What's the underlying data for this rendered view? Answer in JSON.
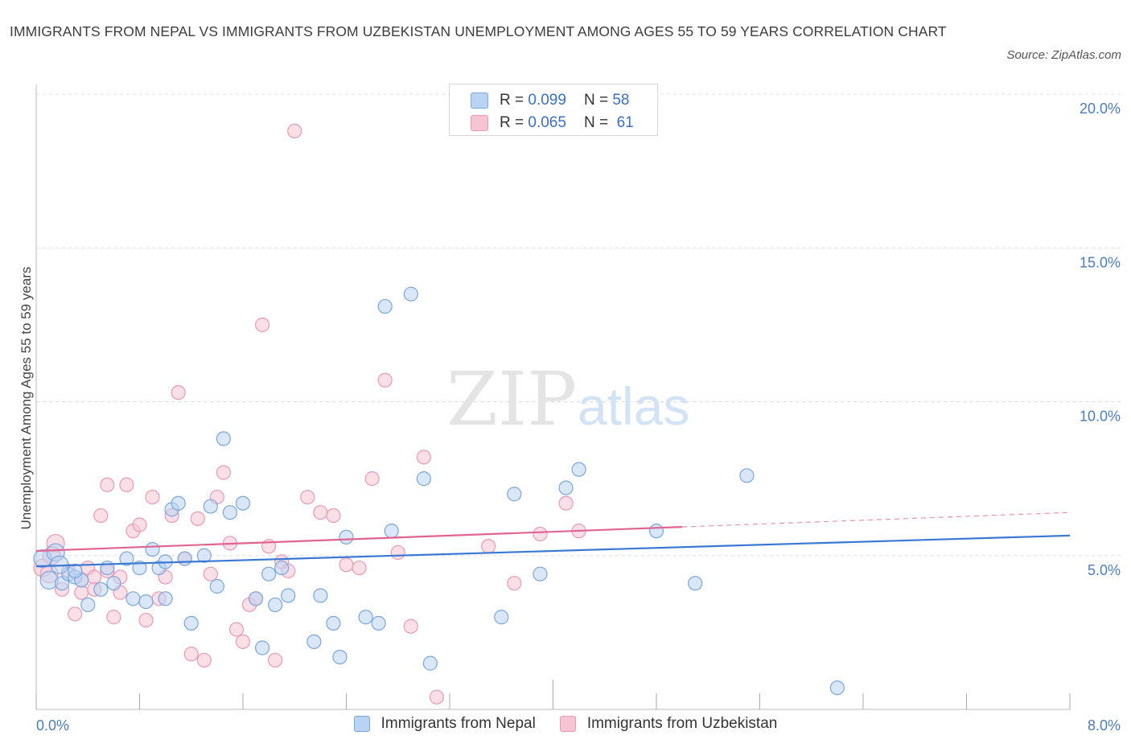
{
  "title": "IMMIGRANTS FROM NEPAL VS IMMIGRANTS FROM UZBEKISTAN UNEMPLOYMENT AMONG AGES 55 TO 59 YEARS CORRELATION CHART",
  "source": "Source: ZipAtlas.com",
  "watermark": {
    "zip": "ZIP",
    "atlas": "atlas"
  },
  "legend": {
    "nepal": {
      "r_label": "R = ",
      "r_value": "0.099",
      "n_label": "N = ",
      "n_value": "58"
    },
    "uzbek": {
      "r_label": "R = ",
      "r_value": "0.065",
      "n_label": "N = ",
      "n_value": "61"
    }
  },
  "bottom_legend": {
    "nepal": "Immigrants from Nepal",
    "uzbek": "Immigrants from Uzbekistan"
  },
  "colors": {
    "nepal_fill": "#b9d3f2",
    "nepal_stroke": "#7aa6e0",
    "nepal_line": "#3a78d4",
    "uzbek_fill": "#f6c4d3",
    "uzbek_stroke": "#ea9ab4",
    "uzbek_line": "#e0648f",
    "grid": "#dcdcdc",
    "tick_text": "#4a7cc7"
  },
  "chart_data": {
    "type": "scatter",
    "xlabel": "",
    "ylabel": "Unemployment Among Ages 55 to 59 years",
    "xlim": [
      0,
      8
    ],
    "ylim": [
      0,
      20
    ],
    "x_tick_labels": [
      "0.0%",
      "8.0%"
    ],
    "y_ticks": [
      5,
      10,
      15,
      20
    ],
    "y_tick_labels": [
      "5.0%",
      "10.0%",
      "15.0%",
      "20.0%"
    ],
    "series": [
      {
        "name": "Immigrants from Nepal",
        "points": [
          [
            0.05,
            4.9
          ],
          [
            0.1,
            4.2
          ],
          [
            0.15,
            5.1
          ],
          [
            0.2,
            4.1
          ],
          [
            0.25,
            4.4
          ],
          [
            0.3,
            4.3
          ],
          [
            0.35,
            4.2
          ],
          [
            0.4,
            3.4
          ],
          [
            0.5,
            3.9
          ],
          [
            0.6,
            4.1
          ],
          [
            0.7,
            4.9
          ],
          [
            0.75,
            3.6
          ],
          [
            0.8,
            4.6
          ],
          [
            0.85,
            3.5
          ],
          [
            0.9,
            5.2
          ],
          [
            0.95,
            4.6
          ],
          [
            1.0,
            4.8
          ],
          [
            1.05,
            6.5
          ],
          [
            1.1,
            6.7
          ],
          [
            1.15,
            4.9
          ],
          [
            1.2,
            2.8
          ],
          [
            1.3,
            5.0
          ],
          [
            1.35,
            6.6
          ],
          [
            1.4,
            4.0
          ],
          [
            1.45,
            8.8
          ],
          [
            1.5,
            6.4
          ],
          [
            1.6,
            6.7
          ],
          [
            1.7,
            3.6
          ],
          [
            1.75,
            2.0
          ],
          [
            1.8,
            4.4
          ],
          [
            1.85,
            3.4
          ],
          [
            1.9,
            4.6
          ],
          [
            1.95,
            3.7
          ],
          [
            2.15,
            2.2
          ],
          [
            2.2,
            3.7
          ],
          [
            2.3,
            2.8
          ],
          [
            2.35,
            1.7
          ],
          [
            2.4,
            5.6
          ],
          [
            2.55,
            3.0
          ],
          [
            2.65,
            2.8
          ],
          [
            2.7,
            13.1
          ],
          [
            2.75,
            5.8
          ],
          [
            2.9,
            13.5
          ],
          [
            3.0,
            7.5
          ],
          [
            3.05,
            1.5
          ],
          [
            3.6,
            3.0
          ],
          [
            3.7,
            7.0
          ],
          [
            3.9,
            4.4
          ],
          [
            4.1,
            7.2
          ],
          [
            4.2,
            7.8
          ],
          [
            4.8,
            5.8
          ],
          [
            5.1,
            4.1
          ],
          [
            5.5,
            7.6
          ],
          [
            6.2,
            0.7
          ],
          [
            0.3,
            4.5
          ],
          [
            0.55,
            4.6
          ],
          [
            1.0,
            3.6
          ],
          [
            0.18,
            4.7
          ]
        ],
        "trend": {
          "x": [
            0,
            8
          ],
          "y": [
            4.65,
            5.65
          ]
        }
      },
      {
        "name": "Immigrants from Uzbekistan",
        "points": [
          [
            0.05,
            4.6
          ],
          [
            0.1,
            4.4
          ],
          [
            0.15,
            5.4
          ],
          [
            0.2,
            3.9
          ],
          [
            0.25,
            4.5
          ],
          [
            0.3,
            3.1
          ],
          [
            0.35,
            3.8
          ],
          [
            0.4,
            4.6
          ],
          [
            0.45,
            4.3
          ],
          [
            0.5,
            6.3
          ],
          [
            0.55,
            7.3
          ],
          [
            0.6,
            3.0
          ],
          [
            0.65,
            4.3
          ],
          [
            0.7,
            7.3
          ],
          [
            0.75,
            5.8
          ],
          [
            0.8,
            6.0
          ],
          [
            0.85,
            2.9
          ],
          [
            0.9,
            6.9
          ],
          [
            0.95,
            3.6
          ],
          [
            1.0,
            4.3
          ],
          [
            1.05,
            6.3
          ],
          [
            1.1,
            10.3
          ],
          [
            1.15,
            4.9
          ],
          [
            1.2,
            1.8
          ],
          [
            1.25,
            6.2
          ],
          [
            1.3,
            1.6
          ],
          [
            1.35,
            4.4
          ],
          [
            1.4,
            6.9
          ],
          [
            1.45,
            7.7
          ],
          [
            1.5,
            5.4
          ],
          [
            1.55,
            2.6
          ],
          [
            1.6,
            2.2
          ],
          [
            1.65,
            3.4
          ],
          [
            1.7,
            3.6
          ],
          [
            1.75,
            12.5
          ],
          [
            1.8,
            5.3
          ],
          [
            1.85,
            1.6
          ],
          [
            1.9,
            4.8
          ],
          [
            1.95,
            4.5
          ],
          [
            2.0,
            18.8
          ],
          [
            2.1,
            6.9
          ],
          [
            2.2,
            6.4
          ],
          [
            2.3,
            6.3
          ],
          [
            2.4,
            4.7
          ],
          [
            2.5,
            4.6
          ],
          [
            2.6,
            7.5
          ],
          [
            2.7,
            10.7
          ],
          [
            2.8,
            5.1
          ],
          [
            2.9,
            2.7
          ],
          [
            3.0,
            8.2
          ],
          [
            3.1,
            0.4
          ],
          [
            3.5,
            5.3
          ],
          [
            3.7,
            4.1
          ],
          [
            3.9,
            5.7
          ],
          [
            4.1,
            6.7
          ],
          [
            4.2,
            5.8
          ],
          [
            0.45,
            3.9
          ],
          [
            0.12,
            5.0
          ],
          [
            0.35,
            4.2
          ],
          [
            0.65,
            3.8
          ],
          [
            0.55,
            4.5
          ]
        ],
        "trend": {
          "x": [
            0,
            8
          ],
          "y": [
            5.15,
            6.4
          ]
        },
        "trend_solid_until": 5.0
      }
    ]
  }
}
